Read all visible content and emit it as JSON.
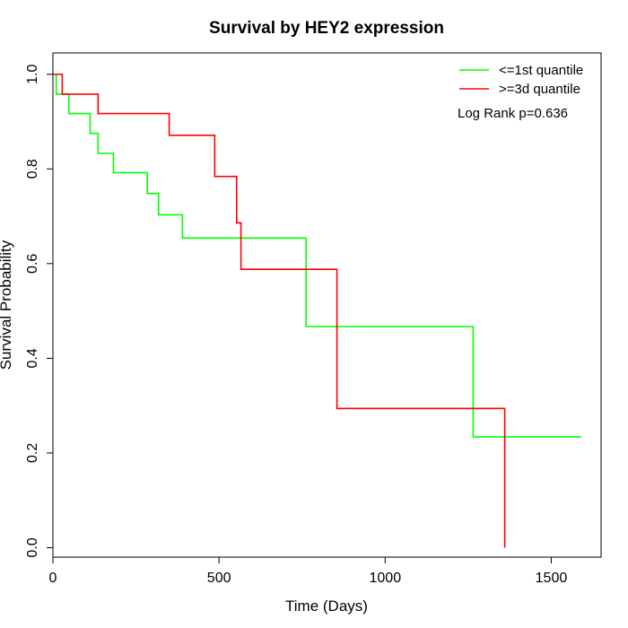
{
  "chart_data": {
    "type": "line",
    "title": "Survival by HEY2 expression",
    "xlabel": "Time (Days)",
    "ylabel": "Survival Probability",
    "xlim": [
      0,
      1650
    ],
    "ylim": [
      -0.02,
      1.045
    ],
    "x_ticks": [
      0,
      500,
      1000,
      1500
    ],
    "y_ticks": [
      0.0,
      0.2,
      0.4,
      0.6,
      0.8,
      1.0
    ],
    "x_tick_labels": [
      "0",
      "500",
      "1000",
      "1500"
    ],
    "y_tick_labels": [
      "0.0",
      "0.2",
      "0.4",
      "0.6",
      "0.8",
      "1.0"
    ],
    "grid": false,
    "legend_position": "top-right",
    "annotation": "Log Rank p=0.636",
    "series": [
      {
        "name": "<=1st quantile",
        "color": "#00ff00",
        "step_x": [
          0,
          10,
          48,
          112,
          136,
          182,
          284,
          318,
          390,
          762,
          1265,
          1590
        ],
        "step_y": [
          1.0,
          0.958,
          0.917,
          0.875,
          0.833,
          0.792,
          0.748,
          0.703,
          0.654,
          0.467,
          0.234,
          0.234
        ]
      },
      {
        "name": ">=3d quantile",
        "color": "#ff0000",
        "step_x": [
          0,
          28,
          136,
          350,
          487,
          553,
          566,
          855,
          1360,
          1360
        ],
        "step_y": [
          1.0,
          0.958,
          0.917,
          0.871,
          0.784,
          0.686,
          0.588,
          0.294,
          0.294,
          0.0
        ]
      }
    ]
  }
}
